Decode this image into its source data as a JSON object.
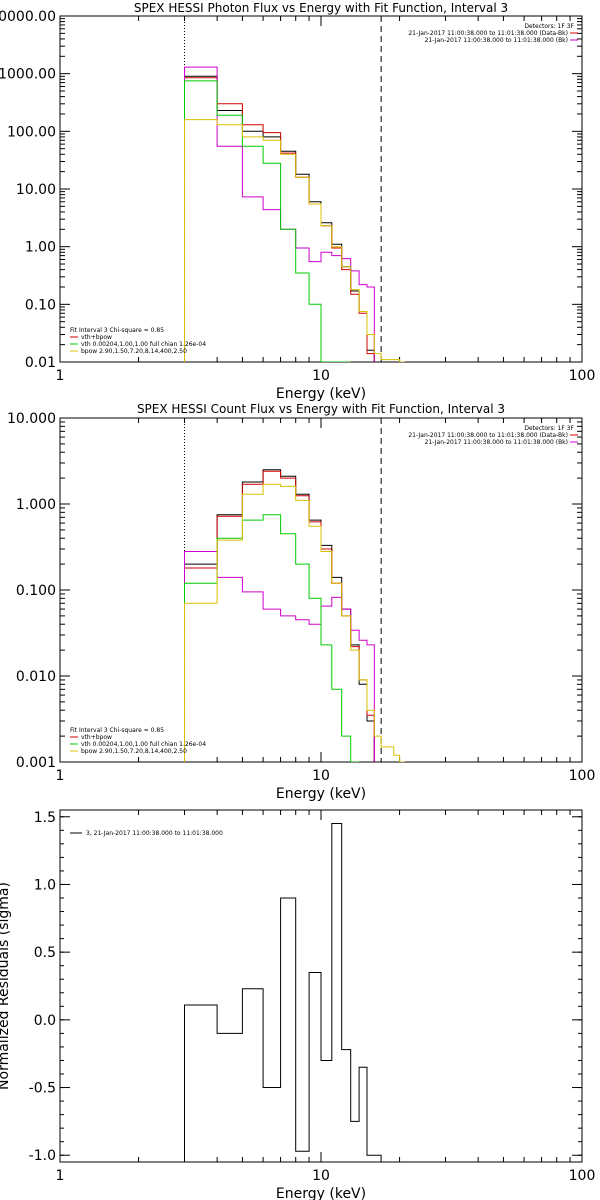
{
  "colors": {
    "data": "#000000",
    "data_minus_bk": "#d00000",
    "bk": "#cc00cc",
    "total_fit": "#d00000",
    "vth": "#00cc00",
    "bpow": "#d8c000"
  },
  "chart_data": [
    {
      "type": "line",
      "title": "SPEX HESSI Photon Flux vs Energy with Fit Function, Interval 3",
      "xlabel": "Energy (keV)",
      "ylabel": "",
      "xscale": "log",
      "yscale": "log",
      "xlim": [
        1,
        100
      ],
      "ylim": [
        0.01,
        10000
      ],
      "xticks": [
        {
          "v": 1,
          "label": "1"
        },
        {
          "v": 10,
          "label": "10"
        },
        {
          "v": 100,
          "label": "100"
        }
      ],
      "yticks": [
        {
          "v": 0.01,
          "label": "0.01"
        },
        {
          "v": 0.1,
          "label": "0.10"
        },
        {
          "v": 1,
          "label": "1.00"
        },
        {
          "v": 10,
          "label": "10.00"
        },
        {
          "v": 100,
          "label": "100.00"
        },
        {
          "v": 1000,
          "label": "1000.00"
        },
        {
          "v": 10000,
          "label": "10000.00"
        }
      ],
      "vlines": [
        {
          "x": 3.0,
          "style": "dotted"
        },
        {
          "x": 17.0,
          "style": "dashed"
        }
      ],
      "legend_top": {
        "header": "Detectors: 1F 3F",
        "entries": [
          {
            "text": "21-Jan-2017 11:00:38.000 to 11:01:38.000 (Data-Bk)",
            "color_key": "data_minus_bk"
          },
          {
            "text": "21-Jan-2017 11:00:38.000 to 11:01:38.000 (Bk)",
            "color_key": "bk"
          }
        ]
      },
      "legend_bottom": {
        "header": "Fit Interval 3   Chi-square = 0.85",
        "entries": [
          {
            "text": "vth+bpow",
            "color_key": "total_fit"
          },
          {
            "text": "vth 0.00204,1.00,1.00  full chian 1.26e-04",
            "color_key": "vth"
          },
          {
            "text": "bpow 2.90,1.50,7.20,8.14,400,2.50",
            "color_key": "bpow"
          }
        ]
      },
      "edges": [
        3.0,
        3.5,
        4.0,
        4.5,
        5.0,
        6.0,
        7.0,
        8.0,
        9.0,
        10.0,
        11.0,
        12.0,
        13.0,
        14.0,
        15.0,
        16.0,
        17.0,
        18.0,
        19.0,
        20.0,
        21.0
      ],
      "series": [
        {
          "color_key": "data",
          "values": [
            900,
            900,
            230,
            230,
            100,
            80,
            45,
            18,
            6,
            2.6,
            1.1,
            0.45,
            0.17,
            0.075,
            0.016,
            null,
            null,
            null,
            null,
            null
          ]
        },
        {
          "color_key": "data_minus_bk",
          "values": [
            850,
            850,
            300,
            300,
            130,
            95,
            42,
            16,
            5.5,
            2.3,
            0.95,
            0.4,
            0.15,
            0.07,
            0.014,
            null,
            null,
            null,
            null,
            null
          ]
        },
        {
          "color_key": "bk",
          "values": [
            1300,
            1300,
            55,
            55,
            7.3,
            4.4,
            2.0,
            0.95,
            0.55,
            0.8,
            0.7,
            0.62,
            0.38,
            0.22,
            0.2,
            null,
            null,
            null,
            null,
            null
          ]
        },
        {
          "color_key": "vth",
          "values": [
            750,
            750,
            190,
            190,
            55,
            28,
            2.0,
            0.35,
            0.1,
            0.01,
            0.01,
            0.01,
            null,
            null,
            null,
            null,
            null,
            null,
            null,
            null
          ]
        },
        {
          "color_key": "bpow",
          "values": [
            160,
            160,
            130,
            130,
            80,
            70,
            40,
            16,
            5.5,
            2.3,
            1.0,
            0.45,
            0.18,
            0.075,
            0.03,
            0.014,
            0.011,
            0.011,
            0.011,
            0.01
          ]
        }
      ]
    },
    {
      "type": "line",
      "title": "SPEX HESSI Count Flux vs Energy with Fit Function, Interval 3",
      "xlabel": "Energy (keV)",
      "ylabel": "",
      "xscale": "log",
      "yscale": "log",
      "xlim": [
        1,
        100
      ],
      "ylim": [
        0.001,
        10
      ],
      "xticks": [
        {
          "v": 1,
          "label": "1"
        },
        {
          "v": 10,
          "label": "10"
        },
        {
          "v": 100,
          "label": "100"
        }
      ],
      "yticks": [
        {
          "v": 0.001,
          "label": "0.001"
        },
        {
          "v": 0.01,
          "label": "0.010"
        },
        {
          "v": 0.1,
          "label": "0.100"
        },
        {
          "v": 1,
          "label": "1.000"
        },
        {
          "v": 10,
          "label": "10.000"
        }
      ],
      "vlines": [
        {
          "x": 3.0,
          "style": "dotted"
        },
        {
          "x": 17.0,
          "style": "dashed"
        }
      ],
      "legend_top": {
        "header": "Detectors: 1F 3F",
        "entries": [
          {
            "text": "21-Jan-2017 11:00:38.000 to 11:01:38.000 (Data-Bk)",
            "color_key": "data_minus_bk"
          },
          {
            "text": "21-Jan-2017 11:00:38.000 to 11:01:38.000 (Bk)",
            "color_key": "bk"
          }
        ]
      },
      "legend_bottom": {
        "header": "Fit Interval 3   Chi-square = 0.85",
        "entries": [
          {
            "text": "vth+bpow",
            "color_key": "total_fit"
          },
          {
            "text": "vth 0.00204,1.00,1.00  full chian 1.26e-04",
            "color_key": "vth"
          },
          {
            "text": "bpow 2.90,1.50,7.20,8.14,400,2.50",
            "color_key": "bpow"
          }
        ]
      },
      "edges": [
        3.0,
        3.5,
        4.0,
        4.5,
        5.0,
        6.0,
        7.0,
        8.0,
        9.0,
        10.0,
        11.0,
        12.0,
        13.0,
        14.0,
        15.0,
        16.0,
        17.0,
        18.0,
        19.0,
        20.0,
        21.0
      ],
      "series": [
        {
          "color_key": "data",
          "values": [
            0.2,
            0.2,
            0.75,
            0.75,
            1.8,
            2.5,
            2.1,
            1.3,
            0.65,
            0.33,
            0.14,
            0.06,
            0.023,
            0.008,
            0.003,
            null,
            null,
            null,
            null,
            null
          ]
        },
        {
          "color_key": "data_minus_bk",
          "values": [
            0.18,
            0.18,
            0.72,
            0.72,
            1.7,
            2.4,
            2.0,
            1.25,
            0.62,
            0.3,
            0.12,
            0.05,
            0.022,
            0.009,
            0.0035,
            null,
            null,
            null,
            null,
            null
          ]
        },
        {
          "color_key": "bk",
          "values": [
            0.28,
            0.28,
            0.14,
            0.14,
            0.095,
            0.06,
            0.05,
            0.045,
            0.04,
            0.065,
            0.082,
            0.06,
            0.034,
            0.026,
            0.023,
            null,
            null,
            null,
            null,
            null
          ]
        },
        {
          "color_key": "vth",
          "values": [
            0.12,
            0.12,
            0.4,
            0.4,
            0.65,
            0.75,
            0.45,
            0.2,
            0.08,
            0.023,
            0.007,
            0.002,
            0.001,
            null,
            null,
            null,
            null,
            null,
            null,
            null
          ]
        },
        {
          "color_key": "bpow",
          "values": [
            0.07,
            0.07,
            0.38,
            0.38,
            1.3,
            1.7,
            1.6,
            1.1,
            0.55,
            0.28,
            0.12,
            0.05,
            0.02,
            0.009,
            0.004,
            0.002,
            0.0015,
            0.0015,
            0.0012,
            0.001
          ]
        }
      ]
    },
    {
      "type": "line",
      "title": "",
      "xlabel": "Energy (keV)",
      "ylabel": "Normalized Residuals (sigma)",
      "xscale": "log",
      "yscale": "linear",
      "xlim": [
        1,
        100
      ],
      "ylim": [
        -1.05,
        1.55
      ],
      "xticks": [
        {
          "v": 1,
          "label": "1"
        },
        {
          "v": 10,
          "label": "10"
        },
        {
          "v": 100,
          "label": "100"
        }
      ],
      "yticks": [
        {
          "v": -1.0,
          "label": "-1.0"
        },
        {
          "v": -0.5,
          "label": "-0.5"
        },
        {
          "v": 0.0,
          "label": "0.0"
        },
        {
          "v": 0.5,
          "label": "0.5"
        },
        {
          "v": 1.0,
          "label": "1.0"
        },
        {
          "v": 1.5,
          "label": "1.5"
        }
      ],
      "legend_top": {
        "header": "",
        "entries": [
          {
            "text": "3, 21-Jan-2017 11:00:38.000 to 11:01:38.000",
            "color_key": "data"
          }
        ]
      },
      "edges": [
        3.0,
        4.0,
        5.0,
        6.0,
        7.0,
        8.0,
        9.0,
        10.0,
        11.0,
        12.0,
        13.0,
        14.0,
        15.0,
        16.0,
        17.0
      ],
      "series": [
        {
          "color_key": "data",
          "values": [
            0.11,
            -0.1,
            0.23,
            -0.5,
            0.9,
            -0.97,
            0.35,
            -0.3,
            1.45,
            -0.22,
            -0.75,
            -0.35,
            -1.0,
            -1.0
          ]
        }
      ]
    }
  ]
}
